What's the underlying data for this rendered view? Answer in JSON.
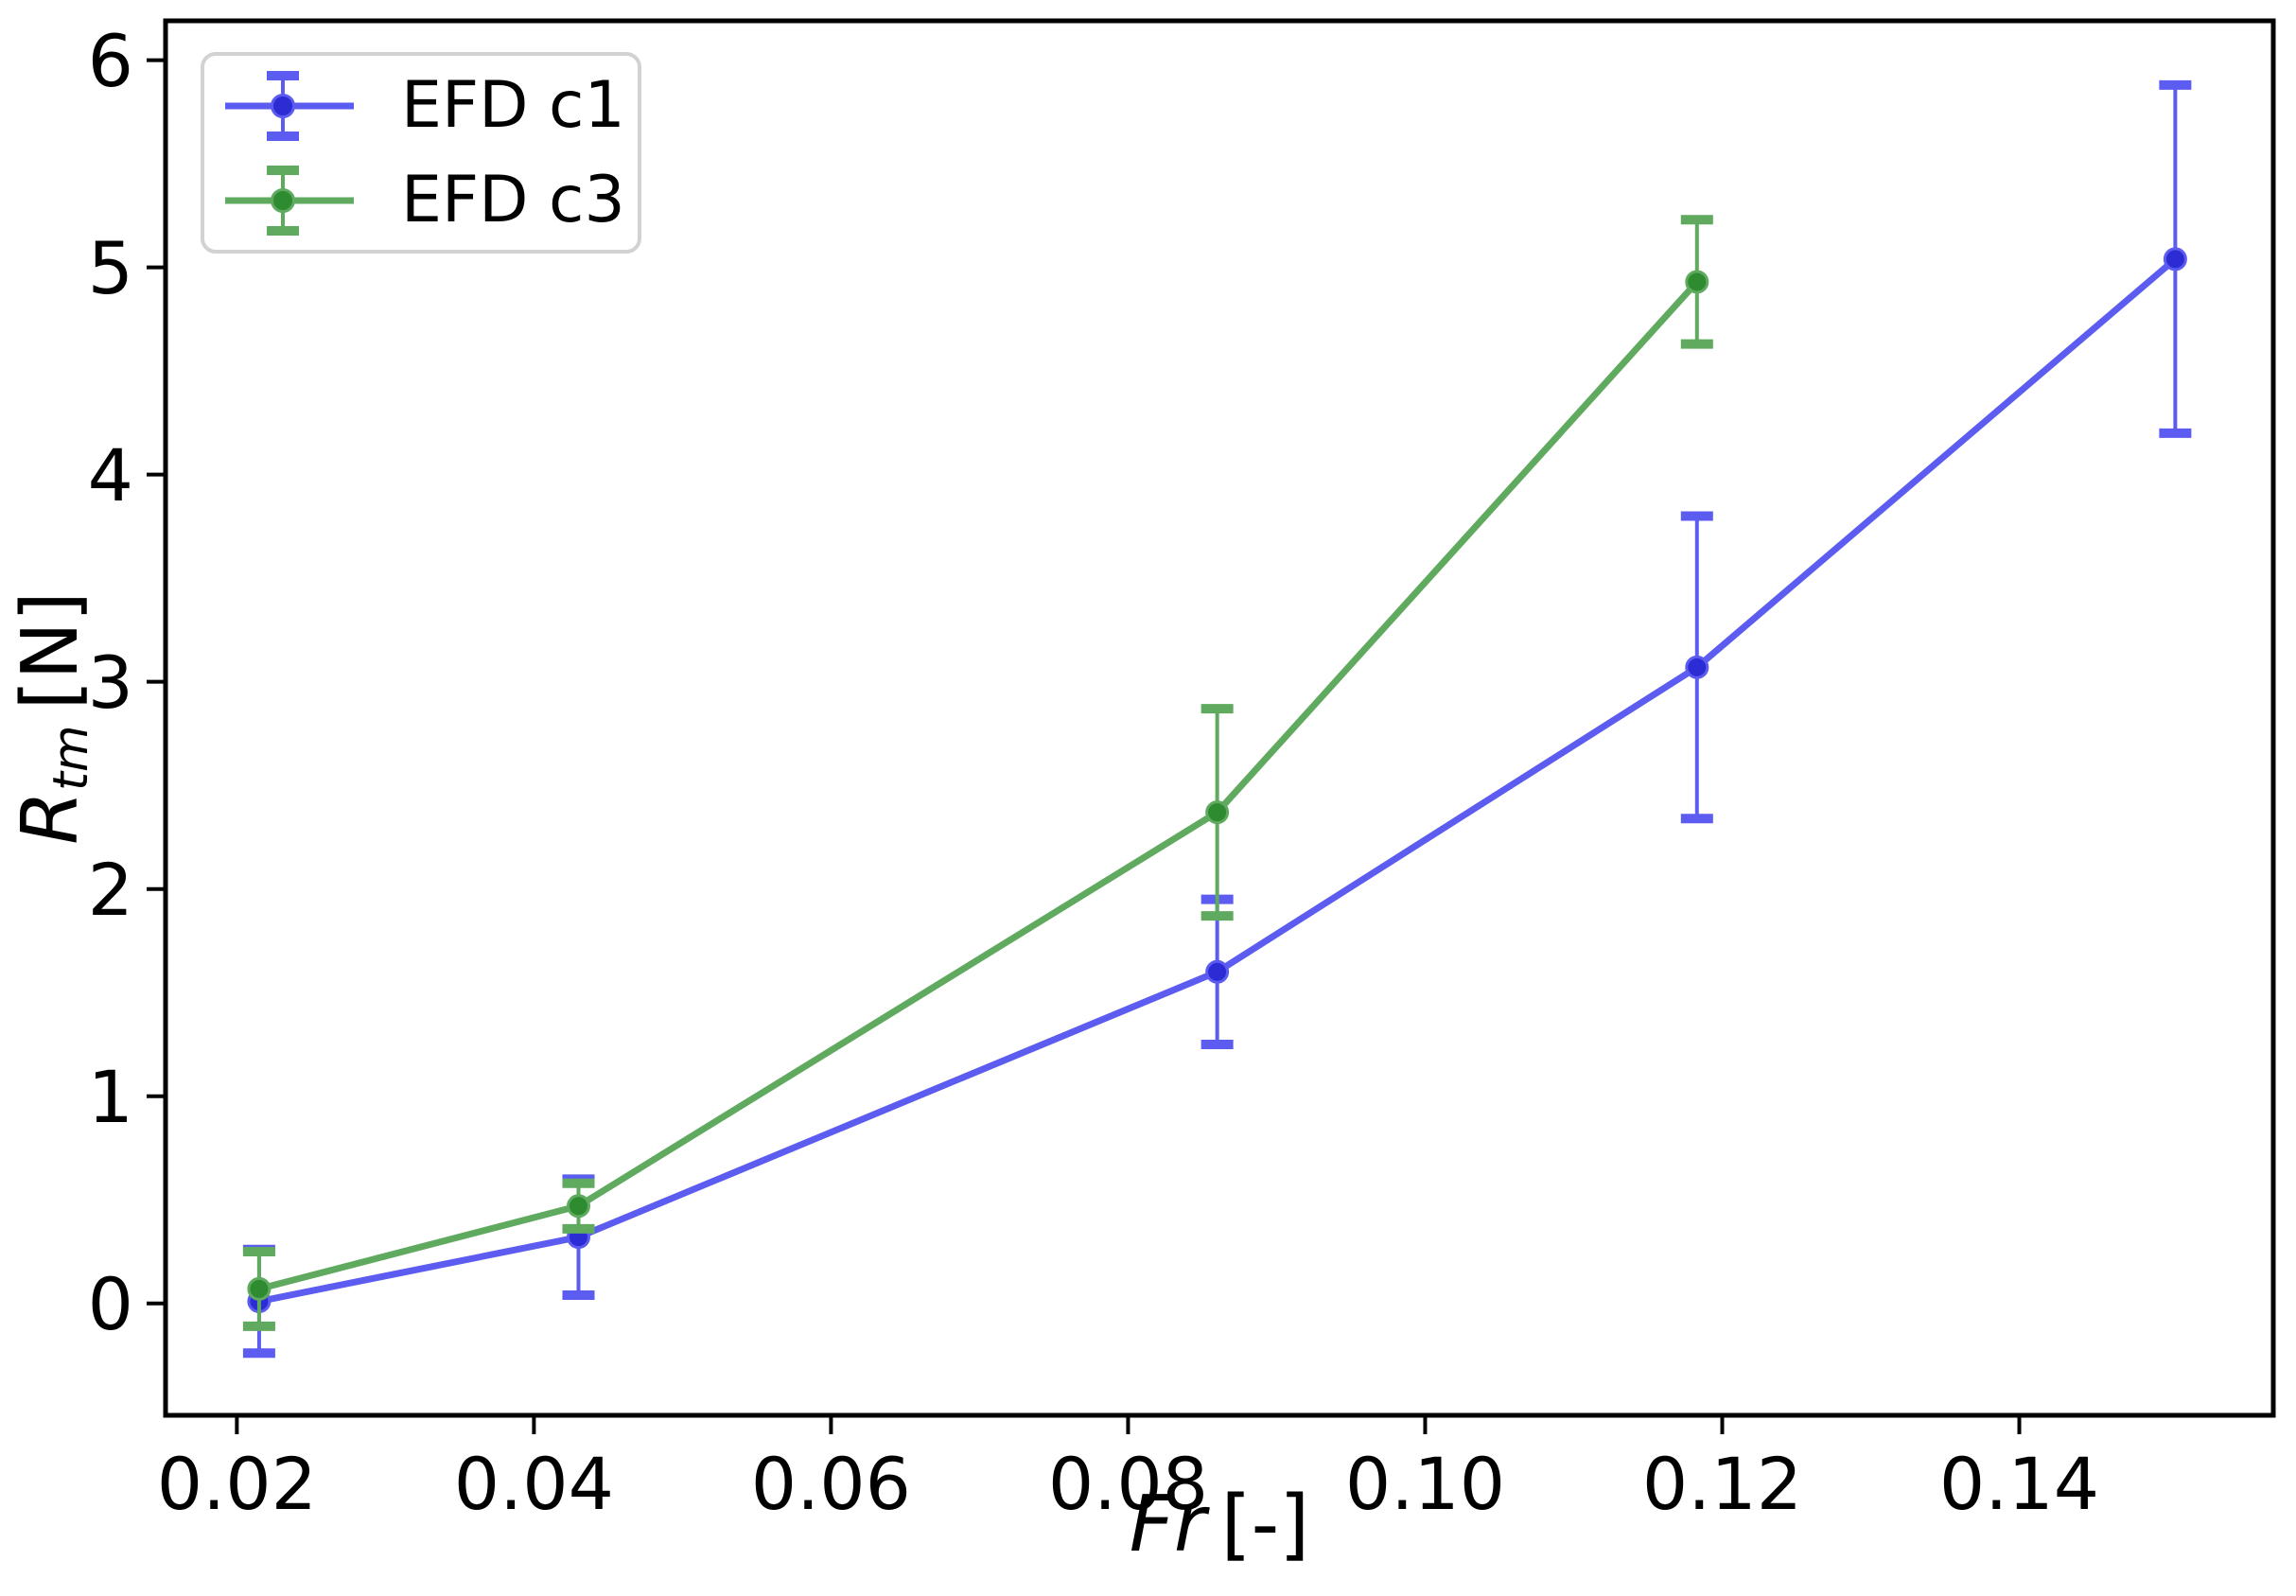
{
  "figure": {
    "background": "#ffffff"
  },
  "chart_data": {
    "type": "line",
    "title": "",
    "xlabel_var": "Fr",
    "xlabel_unit": "[-]",
    "ylabel_var": "R",
    "ylabel_sub": "tm",
    "ylabel_unit": "[N]",
    "xlim": [
      0.0152,
      0.1571
    ],
    "ylim": [
      -0.54,
      6.19
    ],
    "grid": false,
    "legend_position": "upper left",
    "xticks": [
      {
        "v": 0.02,
        "label": "0.02"
      },
      {
        "v": 0.04,
        "label": "0.04"
      },
      {
        "v": 0.06,
        "label": "0.06"
      },
      {
        "v": 0.08,
        "label": "0.08"
      },
      {
        "v": 0.1,
        "label": "0.10"
      },
      {
        "v": 0.12,
        "label": "0.12"
      },
      {
        "v": 0.14,
        "label": "0.14"
      }
    ],
    "yticks": [
      {
        "v": 0,
        "label": "0"
      },
      {
        "v": 1,
        "label": "1"
      },
      {
        "v": 2,
        "label": "2"
      },
      {
        "v": 3,
        "label": "3"
      },
      {
        "v": 4,
        "label": "4"
      },
      {
        "v": 5,
        "label": "5"
      },
      {
        "v": 6,
        "label": "6"
      }
    ],
    "series": [
      {
        "name": "EFD c1",
        "line_color": "#5C5CF0",
        "marker_color": "#2C2CD4",
        "marker": "circle",
        "x": [
          0.0215,
          0.043,
          0.086,
          0.1183,
          0.1505
        ],
        "y": [
          0.01,
          0.32,
          1.6,
          3.07,
          5.04
        ],
        "yerr": [
          0.25,
          0.28,
          0.35,
          0.73,
          0.84
        ]
      },
      {
        "name": "EFD c3",
        "line_color": "#5FAA5F",
        "marker_color": "#2E8B30",
        "marker": "circle",
        "x": [
          0.0215,
          0.043,
          0.086,
          0.1183
        ],
        "y": [
          0.07,
          0.47,
          2.37,
          4.93
        ],
        "yerr": [
          0.18,
          0.11,
          0.5,
          0.3
        ]
      }
    ]
  }
}
